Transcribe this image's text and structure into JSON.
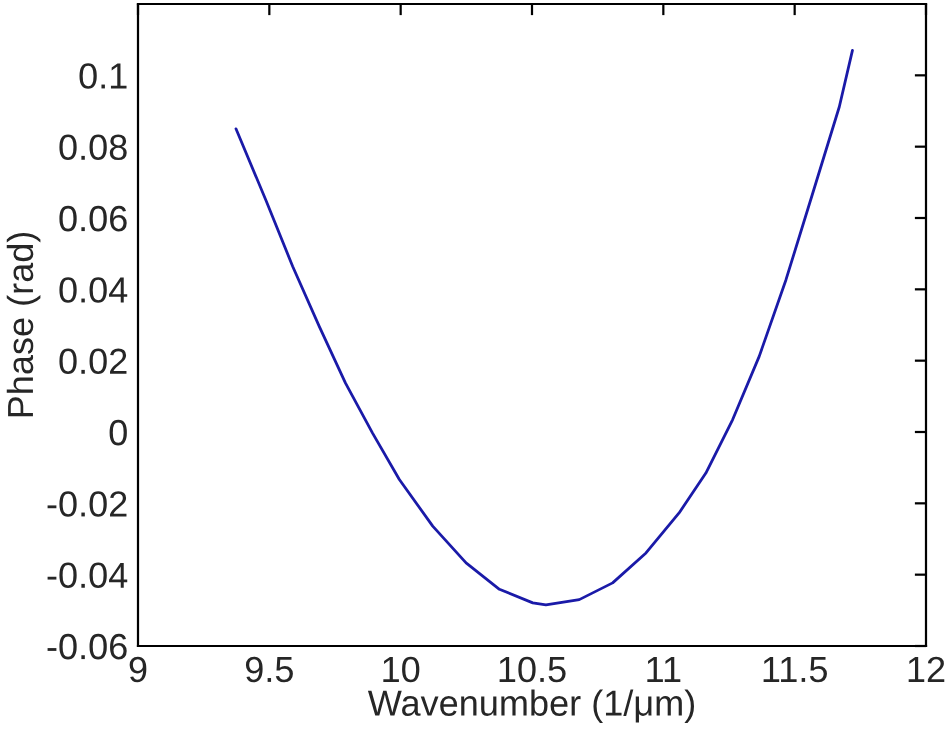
{
  "chart_data": {
    "type": "line",
    "xlabel": "Wavenumber (1/μm)",
    "ylabel": "Phase (rad)",
    "xlim": [
      9,
      12
    ],
    "xticks": [
      9,
      9.5,
      10,
      10.5,
      11,
      11.5,
      12
    ],
    "ylim": [
      -0.06,
      0.12
    ],
    "yticks": [
      -0.06,
      -0.04,
      -0.02,
      0,
      0.02,
      0.04,
      0.06,
      0.08,
      0.1
    ],
    "grid": false,
    "legend": false,
    "series": [
      {
        "color": "#1a1aa8",
        "line_style": "solid",
        "x": [
          9.373,
          9.487,
          9.589,
          9.69,
          9.79,
          9.893,
          9.995,
          10.122,
          10.249,
          10.376,
          10.503,
          10.553,
          10.68,
          10.807,
          10.934,
          11.06,
          11.162,
          11.264,
          11.365,
          11.467,
          11.569,
          11.67,
          11.72
        ],
        "values": [
          0.085,
          0.065,
          0.0464,
          0.0296,
          0.0137,
          -0.0003,
          -0.0133,
          -0.0264,
          -0.0367,
          -0.0441,
          -0.0479,
          -0.0485,
          -0.047,
          -0.0423,
          -0.0339,
          -0.0227,
          -0.0115,
          0.0035,
          0.0212,
          0.0427,
          0.067,
          0.0912,
          0.107
        ]
      }
    ]
  }
}
